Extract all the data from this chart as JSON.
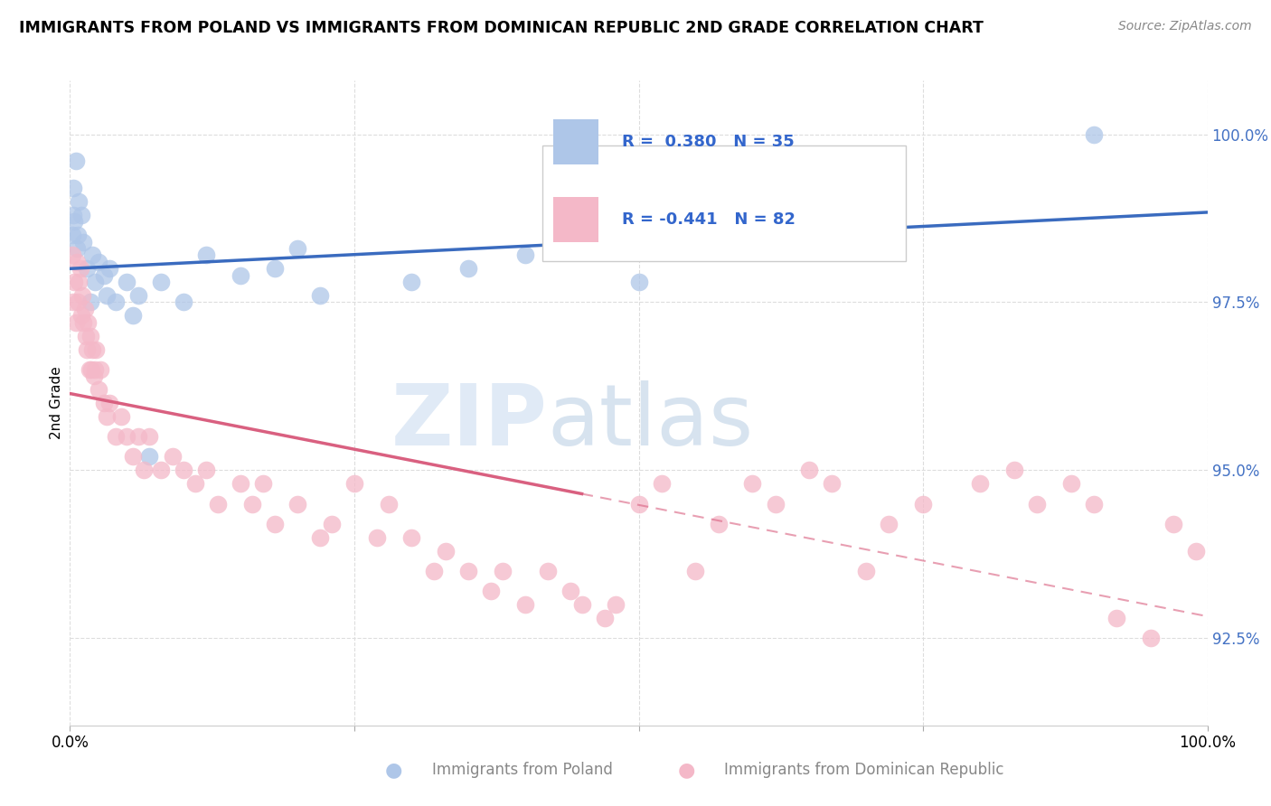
{
  "title": "IMMIGRANTS FROM POLAND VS IMMIGRANTS FROM DOMINICAN REPUBLIC 2ND GRADE CORRELATION CHART",
  "source": "Source: ZipAtlas.com",
  "ylabel": "2nd Grade",
  "ytick_values": [
    92.5,
    95.0,
    97.5,
    100.0
  ],
  "xmin": 0.0,
  "xmax": 100.0,
  "ymin": 91.2,
  "ymax": 100.8,
  "poland_color": "#aec6e8",
  "dr_color": "#f4b8c8",
  "poland_line_color": "#3a6bbf",
  "dr_line_color": "#d96080",
  "legend_poland_text": "R =  0.380   N = 35",
  "legend_dr_text": "R = -0.441   N = 82",
  "watermark_zip": "ZIP",
  "watermark_atlas": "atlas",
  "poland_scatter_x": [
    0.2,
    0.3,
    0.3,
    0.4,
    0.5,
    0.6,
    0.7,
    0.8,
    1.0,
    1.2,
    1.5,
    1.8,
    2.0,
    2.2,
    2.5,
    3.0,
    3.2,
    3.5,
    4.0,
    5.0,
    5.5,
    6.0,
    7.0,
    8.0,
    10.0,
    12.0,
    15.0,
    18.0,
    20.0,
    22.0,
    30.0,
    35.0,
    40.0,
    50.0,
    90.0
  ],
  "poland_scatter_y": [
    98.5,
    99.2,
    98.8,
    98.7,
    99.6,
    98.3,
    98.5,
    99.0,
    98.8,
    98.4,
    98.0,
    97.5,
    98.2,
    97.8,
    98.1,
    97.9,
    97.6,
    98.0,
    97.5,
    97.8,
    97.3,
    97.6,
    95.2,
    97.8,
    97.5,
    98.2,
    97.9,
    98.0,
    98.3,
    97.6,
    97.8,
    98.0,
    98.2,
    97.8,
    100.0
  ],
  "dr_scatter_x": [
    0.2,
    0.3,
    0.4,
    0.5,
    0.6,
    0.7,
    0.8,
    0.9,
    1.0,
    1.1,
    1.2,
    1.3,
    1.4,
    1.5,
    1.6,
    1.7,
    1.8,
    1.9,
    2.0,
    2.1,
    2.2,
    2.3,
    2.5,
    2.7,
    3.0,
    3.2,
    3.5,
    4.0,
    4.5,
    5.0,
    5.5,
    6.0,
    6.5,
    7.0,
    8.0,
    9.0,
    10.0,
    11.0,
    12.0,
    13.0,
    15.0,
    16.0,
    17.0,
    18.0,
    20.0,
    22.0,
    23.0,
    25.0,
    27.0,
    28.0,
    30.0,
    32.0,
    33.0,
    35.0,
    37.0,
    38.0,
    40.0,
    42.0,
    44.0,
    45.0,
    47.0,
    48.0,
    50.0,
    52.0,
    55.0,
    57.0,
    60.0,
    62.0,
    65.0,
    67.0,
    70.0,
    72.0,
    75.0,
    80.0,
    83.0,
    85.0,
    88.0,
    90.0,
    92.0,
    95.0,
    97.0,
    99.0
  ],
  "dr_scatter_y": [
    98.2,
    97.5,
    97.8,
    97.2,
    98.1,
    97.5,
    97.8,
    98.0,
    97.3,
    97.6,
    97.2,
    97.4,
    97.0,
    96.8,
    97.2,
    96.5,
    97.0,
    96.5,
    96.8,
    96.4,
    96.5,
    96.8,
    96.2,
    96.5,
    96.0,
    95.8,
    96.0,
    95.5,
    95.8,
    95.5,
    95.2,
    95.5,
    95.0,
    95.5,
    95.0,
    95.2,
    95.0,
    94.8,
    95.0,
    94.5,
    94.8,
    94.5,
    94.8,
    94.2,
    94.5,
    94.0,
    94.2,
    94.8,
    94.0,
    94.5,
    94.0,
    93.5,
    93.8,
    93.5,
    93.2,
    93.5,
    93.0,
    93.5,
    93.2,
    93.0,
    92.8,
    93.0,
    94.5,
    94.8,
    93.5,
    94.2,
    94.8,
    94.5,
    95.0,
    94.8,
    93.5,
    94.2,
    94.5,
    94.8,
    95.0,
    94.5,
    94.8,
    94.5,
    92.8,
    92.5,
    94.2,
    93.8
  ]
}
